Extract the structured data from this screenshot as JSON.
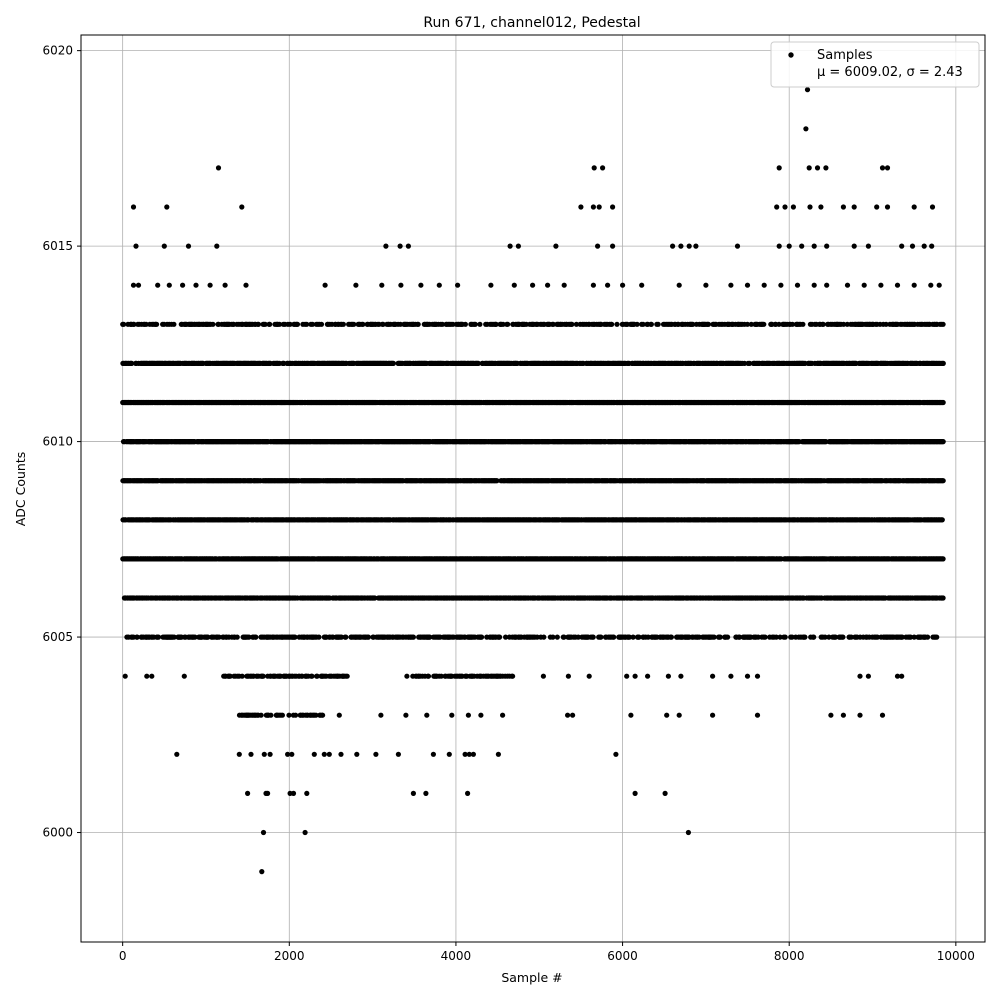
{
  "chart_data": {
    "type": "scatter",
    "title": "Run 671, channel012, Pedestal",
    "xlabel": "Sample #",
    "ylabel": "ADC Counts",
    "xlim": [
      -500,
      10350
    ],
    "ylim": [
      5997.2,
      6020.4
    ],
    "xticks": [
      0,
      2000,
      4000,
      6000,
      8000,
      10000
    ],
    "xtick_labels": [
      "0",
      "2000",
      "4000",
      "6000",
      "8000",
      "10000"
    ],
    "yticks": [
      6000,
      6005,
      6010,
      6015,
      6020
    ],
    "ytick_labels": [
      "6000",
      "6005",
      "6010",
      "6015",
      "6020"
    ],
    "grid": true,
    "legend": {
      "placement": "top-right",
      "series_name": "Samples",
      "stats_text": "μ = 6009.02, σ = 2.43"
    },
    "series": [
      {
        "name": "Samples",
        "color": "#000000",
        "marker": "dot",
        "level_ranges": [
          {
            "y": 6013,
            "x_ranges": [
              [
                0,
                9850
              ]
            ]
          },
          {
            "y": 6012,
            "x_ranges": [
              [
                0,
                9850
              ]
            ]
          },
          {
            "y": 6011,
            "x_ranges": [
              [
                0,
                9850
              ]
            ]
          },
          {
            "y": 6010,
            "x_ranges": [
              [
                0,
                9850
              ]
            ]
          },
          {
            "y": 6009,
            "x_ranges": [
              [
                0,
                9850
              ]
            ]
          },
          {
            "y": 6008,
            "x_ranges": [
              [
                0,
                9850
              ]
            ]
          },
          {
            "y": 6007,
            "x_ranges": [
              [
                0,
                9850
              ]
            ]
          },
          {
            "y": 6006,
            "x_ranges": [
              [
                0,
                9850
              ]
            ]
          },
          {
            "y": 6005,
            "x_ranges": [
              [
                40,
                9800
              ]
            ]
          },
          {
            "y": 6004,
            "x_ranges": [
              [
                1200,
                2700
              ],
              [
                3400,
                4700
              ]
            ]
          },
          {
            "y": 6003,
            "x_ranges": [
              [
                1400,
                2400
              ]
            ]
          }
        ],
        "sparse_points": [
          [
            130,
            6016
          ],
          [
            530,
            6016
          ],
          [
            1430,
            6016
          ],
          [
            5500,
            6016
          ],
          [
            5650,
            6016
          ],
          [
            5720,
            6016
          ],
          [
            5880,
            6016
          ],
          [
            7850,
            6016
          ],
          [
            7950,
            6016
          ],
          [
            8050,
            6016
          ],
          [
            8250,
            6016
          ],
          [
            8380,
            6016
          ],
          [
            8650,
            6016
          ],
          [
            8780,
            6016
          ],
          [
            9050,
            6016
          ],
          [
            9180,
            6016
          ],
          [
            9500,
            6016
          ],
          [
            9720,
            6016
          ],
          [
            1150,
            6017
          ],
          [
            5660,
            6017
          ],
          [
            5760,
            6017
          ],
          [
            7880,
            6017
          ],
          [
            8240,
            6017
          ],
          [
            8340,
            6017
          ],
          [
            8440,
            6017
          ],
          [
            9120,
            6017
          ],
          [
            9180,
            6017
          ],
          [
            8200,
            6018
          ],
          [
            8220,
            6019
          ],
          [
            160,
            6015
          ],
          [
            500,
            6015
          ],
          [
            790,
            6015
          ],
          [
            1130,
            6015
          ],
          [
            3160,
            6015
          ],
          [
            3330,
            6015
          ],
          [
            3430,
            6015
          ],
          [
            4650,
            6015
          ],
          [
            4750,
            6015
          ],
          [
            5200,
            6015
          ],
          [
            5700,
            6015
          ],
          [
            5880,
            6015
          ],
          [
            6600,
            6015
          ],
          [
            6700,
            6015
          ],
          [
            6800,
            6015
          ],
          [
            6880,
            6015
          ],
          [
            7380,
            6015
          ],
          [
            7880,
            6015
          ],
          [
            8000,
            6015
          ],
          [
            8150,
            6015
          ],
          [
            8300,
            6015
          ],
          [
            8450,
            6015
          ],
          [
            8780,
            6015
          ],
          [
            8950,
            6015
          ],
          [
            9350,
            6015
          ],
          [
            9480,
            6015
          ],
          [
            9620,
            6015
          ],
          [
            9710,
            6015
          ],
          [
            130,
            6014
          ],
          [
            190,
            6014
          ],
          [
            420,
            6014
          ],
          [
            560,
            6014
          ],
          [
            720,
            6014
          ],
          [
            880,
            6014
          ],
          [
            1050,
            6014
          ],
          [
            1230,
            6014
          ],
          [
            1480,
            6014
          ],
          [
            2430,
            6014
          ],
          [
            2800,
            6014
          ],
          [
            3110,
            6014
          ],
          [
            3340,
            6014
          ],
          [
            3580,
            6014
          ],
          [
            3800,
            6014
          ],
          [
            4020,
            6014
          ],
          [
            4420,
            6014
          ],
          [
            4700,
            6014
          ],
          [
            4920,
            6014
          ],
          [
            5100,
            6014
          ],
          [
            5300,
            6014
          ],
          [
            5650,
            6014
          ],
          [
            5820,
            6014
          ],
          [
            6000,
            6014
          ],
          [
            6230,
            6014
          ],
          [
            6680,
            6014
          ],
          [
            7000,
            6014
          ],
          [
            7300,
            6014
          ],
          [
            7500,
            6014
          ],
          [
            7700,
            6014
          ],
          [
            7900,
            6014
          ],
          [
            8100,
            6014
          ],
          [
            8300,
            6014
          ],
          [
            8450,
            6014
          ],
          [
            8700,
            6014
          ],
          [
            8900,
            6014
          ],
          [
            9100,
            6014
          ],
          [
            9300,
            6014
          ],
          [
            9500,
            6014
          ],
          [
            9700,
            6014
          ],
          [
            9800,
            6014
          ],
          [
            30,
            6004
          ],
          [
            290,
            6004
          ],
          [
            350,
            6004
          ],
          [
            740,
            6004
          ],
          [
            5050,
            6004
          ],
          [
            5350,
            6004
          ],
          [
            5600,
            6004
          ],
          [
            6050,
            6004
          ],
          [
            6150,
            6004
          ],
          [
            6300,
            6004
          ],
          [
            6550,
            6004
          ],
          [
            6700,
            6004
          ],
          [
            7080,
            6004
          ],
          [
            7300,
            6004
          ],
          [
            7500,
            6004
          ],
          [
            7620,
            6004
          ],
          [
            8850,
            6004
          ],
          [
            8950,
            6004
          ],
          [
            9300,
            6004
          ],
          [
            9350,
            6004
          ],
          [
            2600,
            6003
          ],
          [
            3100,
            6003
          ],
          [
            3400,
            6003
          ],
          [
            3650,
            6003
          ],
          [
            3950,
            6003
          ],
          [
            4150,
            6003
          ],
          [
            4300,
            6003
          ],
          [
            4560,
            6003
          ],
          [
            5340,
            6003
          ],
          [
            5400,
            6003
          ],
          [
            6100,
            6003
          ],
          [
            6530,
            6003
          ],
          [
            6680,
            6003
          ],
          [
            7080,
            6003
          ],
          [
            7620,
            6003
          ],
          [
            8500,
            6003
          ],
          [
            8650,
            6003
          ],
          [
            8850,
            6003
          ],
          [
            9120,
            6003
          ],
          [
            650,
            6002
          ],
          [
            1400,
            6002
          ],
          [
            1540,
            6002
          ],
          [
            1700,
            6002
          ],
          [
            1770,
            6002
          ],
          [
            1980,
            6002
          ],
          [
            2030,
            6002
          ],
          [
            2300,
            6002
          ],
          [
            2420,
            6002
          ],
          [
            2480,
            6002
          ],
          [
            2620,
            6002
          ],
          [
            2810,
            6002
          ],
          [
            3040,
            6002
          ],
          [
            3310,
            6002
          ],
          [
            3730,
            6002
          ],
          [
            3920,
            6002
          ],
          [
            4110,
            6002
          ],
          [
            4160,
            6002
          ],
          [
            4210,
            6002
          ],
          [
            4510,
            6002
          ],
          [
            5920,
            6002
          ],
          [
            1500,
            6001
          ],
          [
            1720,
            6001
          ],
          [
            1740,
            6001
          ],
          [
            2010,
            6001
          ],
          [
            2050,
            6001
          ],
          [
            2210,
            6001
          ],
          [
            3490,
            6001
          ],
          [
            3640,
            6001
          ],
          [
            4140,
            6001
          ],
          [
            6150,
            6001
          ],
          [
            6510,
            6001
          ],
          [
            1690,
            6000
          ],
          [
            2190,
            6000
          ],
          [
            6790,
            6000
          ],
          [
            1670,
            5999
          ]
        ]
      }
    ]
  }
}
